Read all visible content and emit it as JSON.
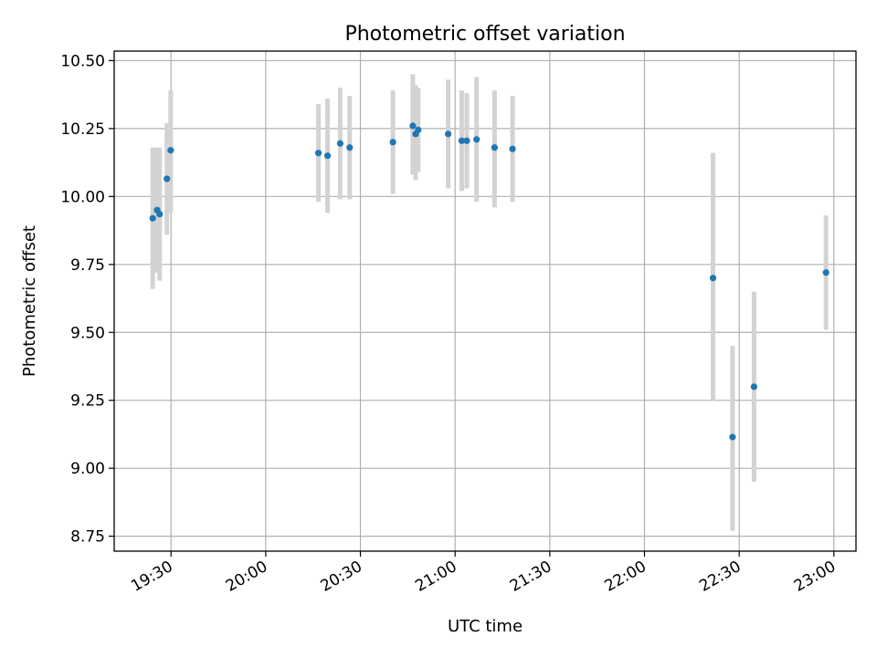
{
  "chart_data": {
    "type": "scatter",
    "title": "Photometric offset variation",
    "xlabel": "UTC time",
    "ylabel": "Photometric offset",
    "xlim": [
      "19:12",
      "23:07"
    ],
    "ylim": [
      8.695,
      10.535
    ],
    "x_ticks": [
      "19:30",
      "20:00",
      "20:30",
      "21:00",
      "21:30",
      "22:00",
      "22:30",
      "23:00"
    ],
    "y_ticks": [
      "8.75",
      "9.00",
      "9.25",
      "9.50",
      "9.75",
      "10.00",
      "10.25",
      "10.50"
    ],
    "grid": true,
    "colors": {
      "points": "#1f77b4",
      "error_bars": "#d3d3d3"
    },
    "points": [
      {
        "x": "19:24.2",
        "y": 9.92,
        "err_low": 9.66,
        "err_high": 10.18
      },
      {
        "x": "19:25.6",
        "y": 9.95,
        "err_low": 9.72,
        "err_high": 10.18
      },
      {
        "x": "19:26.4",
        "y": 9.935,
        "err_low": 9.69,
        "err_high": 10.18
      },
      {
        "x": "19:28.7",
        "y": 10.065,
        "err_low": 9.86,
        "err_high": 10.27
      },
      {
        "x": "19:29.9",
        "y": 10.17,
        "err_low": 9.94,
        "err_high": 10.39
      },
      {
        "x": "20:16.7",
        "y": 10.16,
        "err_low": 9.98,
        "err_high": 10.34
      },
      {
        "x": "20:19.6",
        "y": 10.15,
        "err_low": 9.94,
        "err_high": 10.36
      },
      {
        "x": "20:23.6",
        "y": 10.195,
        "err_low": 9.99,
        "err_high": 10.4
      },
      {
        "x": "20:26.6",
        "y": 10.18,
        "err_low": 9.99,
        "err_high": 10.37
      },
      {
        "x": "20:40.3",
        "y": 10.2,
        "err_low": 10.01,
        "err_high": 10.39
      },
      {
        "x": "20:46.6",
        "y": 10.26,
        "err_low": 10.08,
        "err_high": 10.45
      },
      {
        "x": "20:47.5",
        "y": 10.23,
        "err_low": 10.06,
        "err_high": 10.41
      },
      {
        "x": "20:48.3",
        "y": 10.245,
        "err_low": 10.09,
        "err_high": 10.4
      },
      {
        "x": "20:57.8",
        "y": 10.23,
        "err_low": 10.03,
        "err_high": 10.43
      },
      {
        "x": "21:02.1",
        "y": 10.205,
        "err_low": 10.02,
        "err_high": 10.39
      },
      {
        "x": "21:03.7",
        "y": 10.205,
        "err_low": 10.03,
        "err_high": 10.38
      },
      {
        "x": "21:06.8",
        "y": 10.21,
        "err_low": 9.98,
        "err_high": 10.44
      },
      {
        "x": "21:12.5",
        "y": 10.18,
        "err_low": 9.96,
        "err_high": 10.39
      },
      {
        "x": "21:18.2",
        "y": 10.175,
        "err_low": 9.98,
        "err_high": 10.37
      },
      {
        "x": "22:21.7",
        "y": 9.7,
        "err_low": 9.25,
        "err_high": 10.16
      },
      {
        "x": "22:27.9",
        "y": 9.115,
        "err_low": 8.77,
        "err_high": 9.45
      },
      {
        "x": "22:34.7",
        "y": 9.3,
        "err_low": 8.95,
        "err_high": 9.65
      },
      {
        "x": "22:57.5",
        "y": 9.72,
        "err_low": 9.51,
        "err_high": 9.93
      }
    ]
  }
}
